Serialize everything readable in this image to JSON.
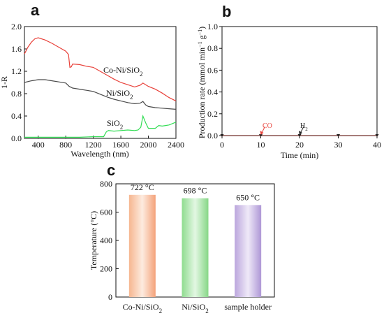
{
  "chart_data": [
    {
      "panel": "a",
      "type": "line",
      "xlabel": "Wavelength (nm)",
      "ylabel": "1-R",
      "xlim": [
        200,
        2400
      ],
      "ylim": [
        0.0,
        2.0
      ],
      "x_ticks": [
        400,
        800,
        1200,
        1600,
        2000,
        2400
      ],
      "y_ticks": [
        0.0,
        0.4,
        0.8,
        1.2,
        1.6,
        2.0
      ],
      "tick_labels_x": [
        "400",
        "800",
        "1200",
        "1600",
        "2000",
        "2400"
      ],
      "tick_labels_y": [
        "0.0",
        "0.4",
        "0.8",
        "1.2",
        "1.6",
        "2.0"
      ],
      "grid": false,
      "series": [
        {
          "name": "Co-Ni/SiO2",
          "label_main": "Co-Ni/SiO",
          "label_sub": "2",
          "color": "#e8413a",
          "x": [
            200,
            250,
            300,
            350,
            400,
            500,
            600,
            700,
            800,
            840,
            860,
            880,
            900,
            1000,
            1100,
            1200,
            1300,
            1400,
            1500,
            1600,
            1700,
            1800,
            1880,
            1920,
            1960,
            2000,
            2100,
            2200,
            2300,
            2400
          ],
          "y": [
            1.51,
            1.63,
            1.72,
            1.78,
            1.8,
            1.76,
            1.7,
            1.63,
            1.56,
            1.5,
            1.27,
            1.28,
            1.33,
            1.32,
            1.29,
            1.27,
            1.2,
            1.13,
            1.06,
            1.0,
            0.96,
            0.92,
            0.95,
            0.99,
            0.96,
            0.93,
            0.88,
            0.81,
            0.73,
            0.67
          ]
        },
        {
          "name": "Ni/SiO2",
          "label_main": "Ni/SiO",
          "label_sub": "2",
          "color": "#4a4a4a",
          "x": [
            200,
            300,
            400,
            500,
            600,
            700,
            800,
            850,
            900,
            1000,
            1100,
            1200,
            1300,
            1400,
            1500,
            1600,
            1700,
            1800,
            1880,
            1920,
            1960,
            2000,
            2100,
            2200,
            2300,
            2400
          ],
          "y": [
            1.0,
            1.03,
            1.05,
            1.05,
            1.03,
            1.01,
            0.99,
            0.93,
            0.9,
            0.88,
            0.86,
            0.84,
            0.79,
            0.74,
            0.7,
            0.67,
            0.64,
            0.62,
            0.63,
            0.66,
            0.6,
            0.57,
            0.55,
            0.54,
            0.53,
            0.52
          ]
        },
        {
          "name": "SiO2",
          "label_main": "SiO",
          "label_sub": "2",
          "color": "#33dd55",
          "x": [
            200,
            400,
            600,
            800,
            1000,
            1200,
            1350,
            1390,
            1420,
            1500,
            1600,
            1700,
            1800,
            1850,
            1890,
            1920,
            1960,
            2000,
            2100,
            2150,
            2200,
            2250,
            2300,
            2400
          ],
          "y": [
            0.02,
            0.02,
            0.02,
            0.02,
            0.02,
            0.03,
            0.03,
            0.12,
            0.14,
            0.13,
            0.14,
            0.15,
            0.14,
            0.15,
            0.2,
            0.4,
            0.28,
            0.18,
            0.18,
            0.23,
            0.22,
            0.23,
            0.24,
            0.29
          ]
        }
      ]
    },
    {
      "panel": "b",
      "type": "line",
      "xlabel": "Time (min)",
      "ylabel_main": "Production rate (mmol min",
      "ylabel_sup1": "−1",
      "ylabel_mid": " g",
      "ylabel_sup2": "−1",
      "ylabel_end": ")",
      "xlim": [
        0,
        40
      ],
      "ylim": [
        0.0,
        1.0
      ],
      "x_ticks": [
        0,
        10,
        20,
        30,
        40
      ],
      "y_ticks": [
        0.0,
        0.2,
        0.4,
        0.6,
        0.8,
        1.0
      ],
      "tick_labels_x": [
        "0",
        "10",
        "20",
        "30",
        "40"
      ],
      "tick_labels_y": [
        "0.0",
        "0.2",
        "0.4",
        "0.6",
        "0.8",
        "1.0"
      ],
      "grid": false,
      "series": [
        {
          "name": "CO",
          "color": "#e8413a",
          "x": [
            0,
            10,
            20,
            30,
            40
          ],
          "y": [
            0.0,
            0.0,
            0.0,
            0.0,
            0.0
          ]
        },
        {
          "name": "H2",
          "color": "#222222",
          "x": [
            0,
            10,
            20,
            30,
            40
          ],
          "y": [
            0.0,
            0.0,
            0.0,
            0.0,
            0.0
          ]
        }
      ],
      "annotations": [
        {
          "text_main": "CO",
          "text_sub": "",
          "color": "#e8413a",
          "x": 10,
          "y": 0.0
        },
        {
          "text_main": "H",
          "text_sub": "2",
          "color": "#222222",
          "x": 20,
          "y": 0.0
        }
      ]
    },
    {
      "panel": "c",
      "type": "bar",
      "ylabel": "Temperature (°C)",
      "ylim": [
        0,
        800
      ],
      "y_ticks": [
        0,
        200,
        400,
        600,
        800
      ],
      "tick_labels_y": [
        "0",
        "200",
        "400",
        "600",
        "800"
      ],
      "grid": false,
      "bars": [
        {
          "label_main": "Co-Ni/SiO",
          "label_sub": "2",
          "value": 722,
          "value_label": "722 °C",
          "color": "#f4a97a"
        },
        {
          "label_main": "Ni/SiO",
          "label_sub": "2",
          "value": 698,
          "value_label": "698 °C",
          "color": "#8fdc8f"
        },
        {
          "label_main": "sample holder",
          "label_sub": "",
          "value": 650,
          "value_label": "650 °C",
          "color": "#b9a3dc"
        }
      ]
    }
  ]
}
